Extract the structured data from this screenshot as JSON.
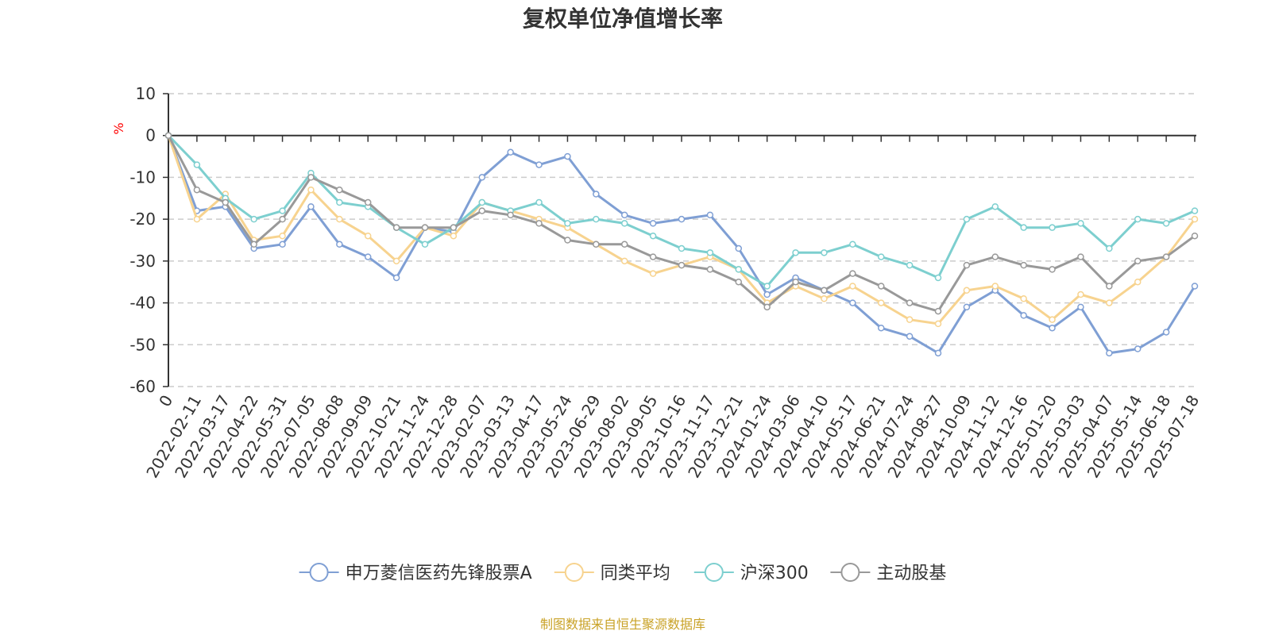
{
  "chart_data": {
    "type": "line",
    "title": "复权单位净值增长率",
    "ylabel": "%",
    "ylim": [
      -60,
      10
    ],
    "yticks": [
      10,
      0,
      -10,
      -20,
      -30,
      -40,
      -50,
      -60
    ],
    "grid": true,
    "legend_position": "bottom",
    "source_note": "制图数据来自恒生聚源数据库",
    "x_labels": [
      "0",
      "2022-02-11",
      "2022-03-17",
      "2022-04-22",
      "2022-05-31",
      "2022-07-05",
      "2022-08-08",
      "2022-09-09",
      "2022-10-21",
      "2022-11-24",
      "2022-12-28",
      "2023-02-07",
      "2023-03-13",
      "2023-04-17",
      "2023-05-24",
      "2023-06-29",
      "2023-08-02",
      "2023-09-05",
      "2023-10-16",
      "2023-11-17",
      "2023-12-21",
      "2024-01-24",
      "2024-03-06",
      "2024-04-10",
      "2024-05-17",
      "2024-06-21",
      "2024-07-24",
      "2024-08-27",
      "2024-10-09",
      "2024-11-12",
      "2024-12-16",
      "2025-01-20",
      "2025-03-03",
      "2025-04-07",
      "2025-05-14",
      "2025-06-18",
      "2025-07-18"
    ],
    "series": [
      {
        "name": "申万菱信医药先锋股票A",
        "color": "#7f9fd4",
        "values": [
          0,
          -18,
          -17,
          -27,
          -26,
          -17,
          -26,
          -29,
          -34,
          -22,
          -23,
          -10,
          -4,
          -7,
          -5,
          -14,
          -19,
          -21,
          -20,
          -19,
          -27,
          -38,
          -34,
          -37,
          -40,
          -46,
          -48,
          -52,
          -41,
          -37,
          -43,
          -46,
          -41,
          -52,
          -51,
          -47,
          -36
        ]
      },
      {
        "name": "同类平均",
        "color": "#f7d38f",
        "values": [
          0,
          -20,
          -14,
          -25,
          -24,
          -13,
          -20,
          -24,
          -30,
          -22,
          -24,
          -16,
          -18,
          -20,
          -22,
          -26,
          -30,
          -33,
          -31,
          -29,
          -32,
          -40,
          -36,
          -39,
          -36,
          -40,
          -44,
          -45,
          -37,
          -36,
          -39,
          -44,
          -38,
          -40,
          -35,
          -29,
          -20
        ]
      },
      {
        "name": "沪深300",
        "color": "#7dcfcf",
        "values": [
          0,
          -7,
          -15,
          -20,
          -18,
          -9,
          -16,
          -17,
          -22,
          -26,
          -22,
          -16,
          -18,
          -16,
          -21,
          -20,
          -21,
          -24,
          -27,
          -28,
          -32,
          -36,
          -28,
          -28,
          -26,
          -29,
          -31,
          -34,
          -20,
          -17,
          -22,
          -22,
          -21,
          -27,
          -20,
          -21,
          -18
        ]
      },
      {
        "name": "主动股基",
        "color": "#999999",
        "values": [
          0,
          -13,
          -16,
          -26,
          -20,
          -10,
          -13,
          -16,
          -22,
          -22,
          -22,
          -18,
          -19,
          -21,
          -25,
          -26,
          -26,
          -29,
          -31,
          -32,
          -35,
          -41,
          -35,
          -37,
          -33,
          -36,
          -40,
          -42,
          -31,
          -29,
          -31,
          -32,
          -29,
          -36,
          -30,
          -29,
          -24
        ]
      }
    ]
  }
}
